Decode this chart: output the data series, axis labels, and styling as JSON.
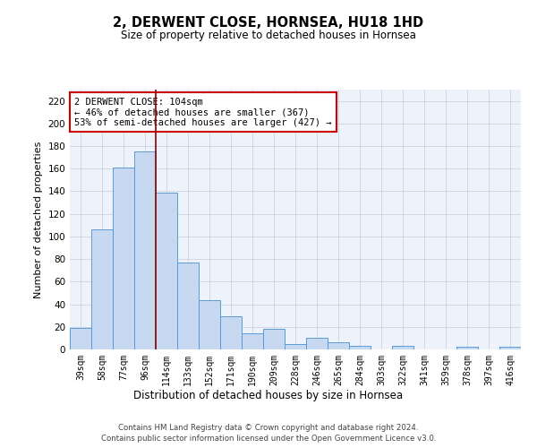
{
  "title": "2, DERWENT CLOSE, HORNSEA, HU18 1HD",
  "subtitle": "Size of property relative to detached houses in Hornsea",
  "xlabel": "Distribution of detached houses by size in Hornsea",
  "ylabel": "Number of detached properties",
  "categories": [
    "39sqm",
    "58sqm",
    "77sqm",
    "96sqm",
    "114sqm",
    "133sqm",
    "152sqm",
    "171sqm",
    "190sqm",
    "209sqm",
    "228sqm",
    "246sqm",
    "265sqm",
    "284sqm",
    "303sqm",
    "322sqm",
    "341sqm",
    "359sqm",
    "378sqm",
    "397sqm",
    "416sqm"
  ],
  "values": [
    19,
    106,
    161,
    175,
    139,
    77,
    44,
    29,
    14,
    18,
    5,
    10,
    6,
    3,
    0,
    3,
    0,
    0,
    2,
    0,
    2
  ],
  "bar_color": "#c6d9f0",
  "bar_edge_color": "#5b9bd5",
  "vline_x": 3.5,
  "vline_color": "#8b0000",
  "annotation_line1": "2 DERWENT CLOSE: 104sqm",
  "annotation_line2": "← 46% of detached houses are smaller (367)",
  "annotation_line3": "53% of semi-detached houses are larger (427) →",
  "annotation_box_color": "#ffffff",
  "annotation_box_edge": "#cc0000",
  "ylim": [
    0,
    230
  ],
  "yticks": [
    0,
    20,
    40,
    60,
    80,
    100,
    120,
    140,
    160,
    180,
    200,
    220
  ],
  "footer1": "Contains HM Land Registry data © Crown copyright and database right 2024.",
  "footer2": "Contains public sector information licensed under the Open Government Licence v3.0.",
  "grid_color": "#d0d8e8",
  "bg_color": "#eef2fb"
}
